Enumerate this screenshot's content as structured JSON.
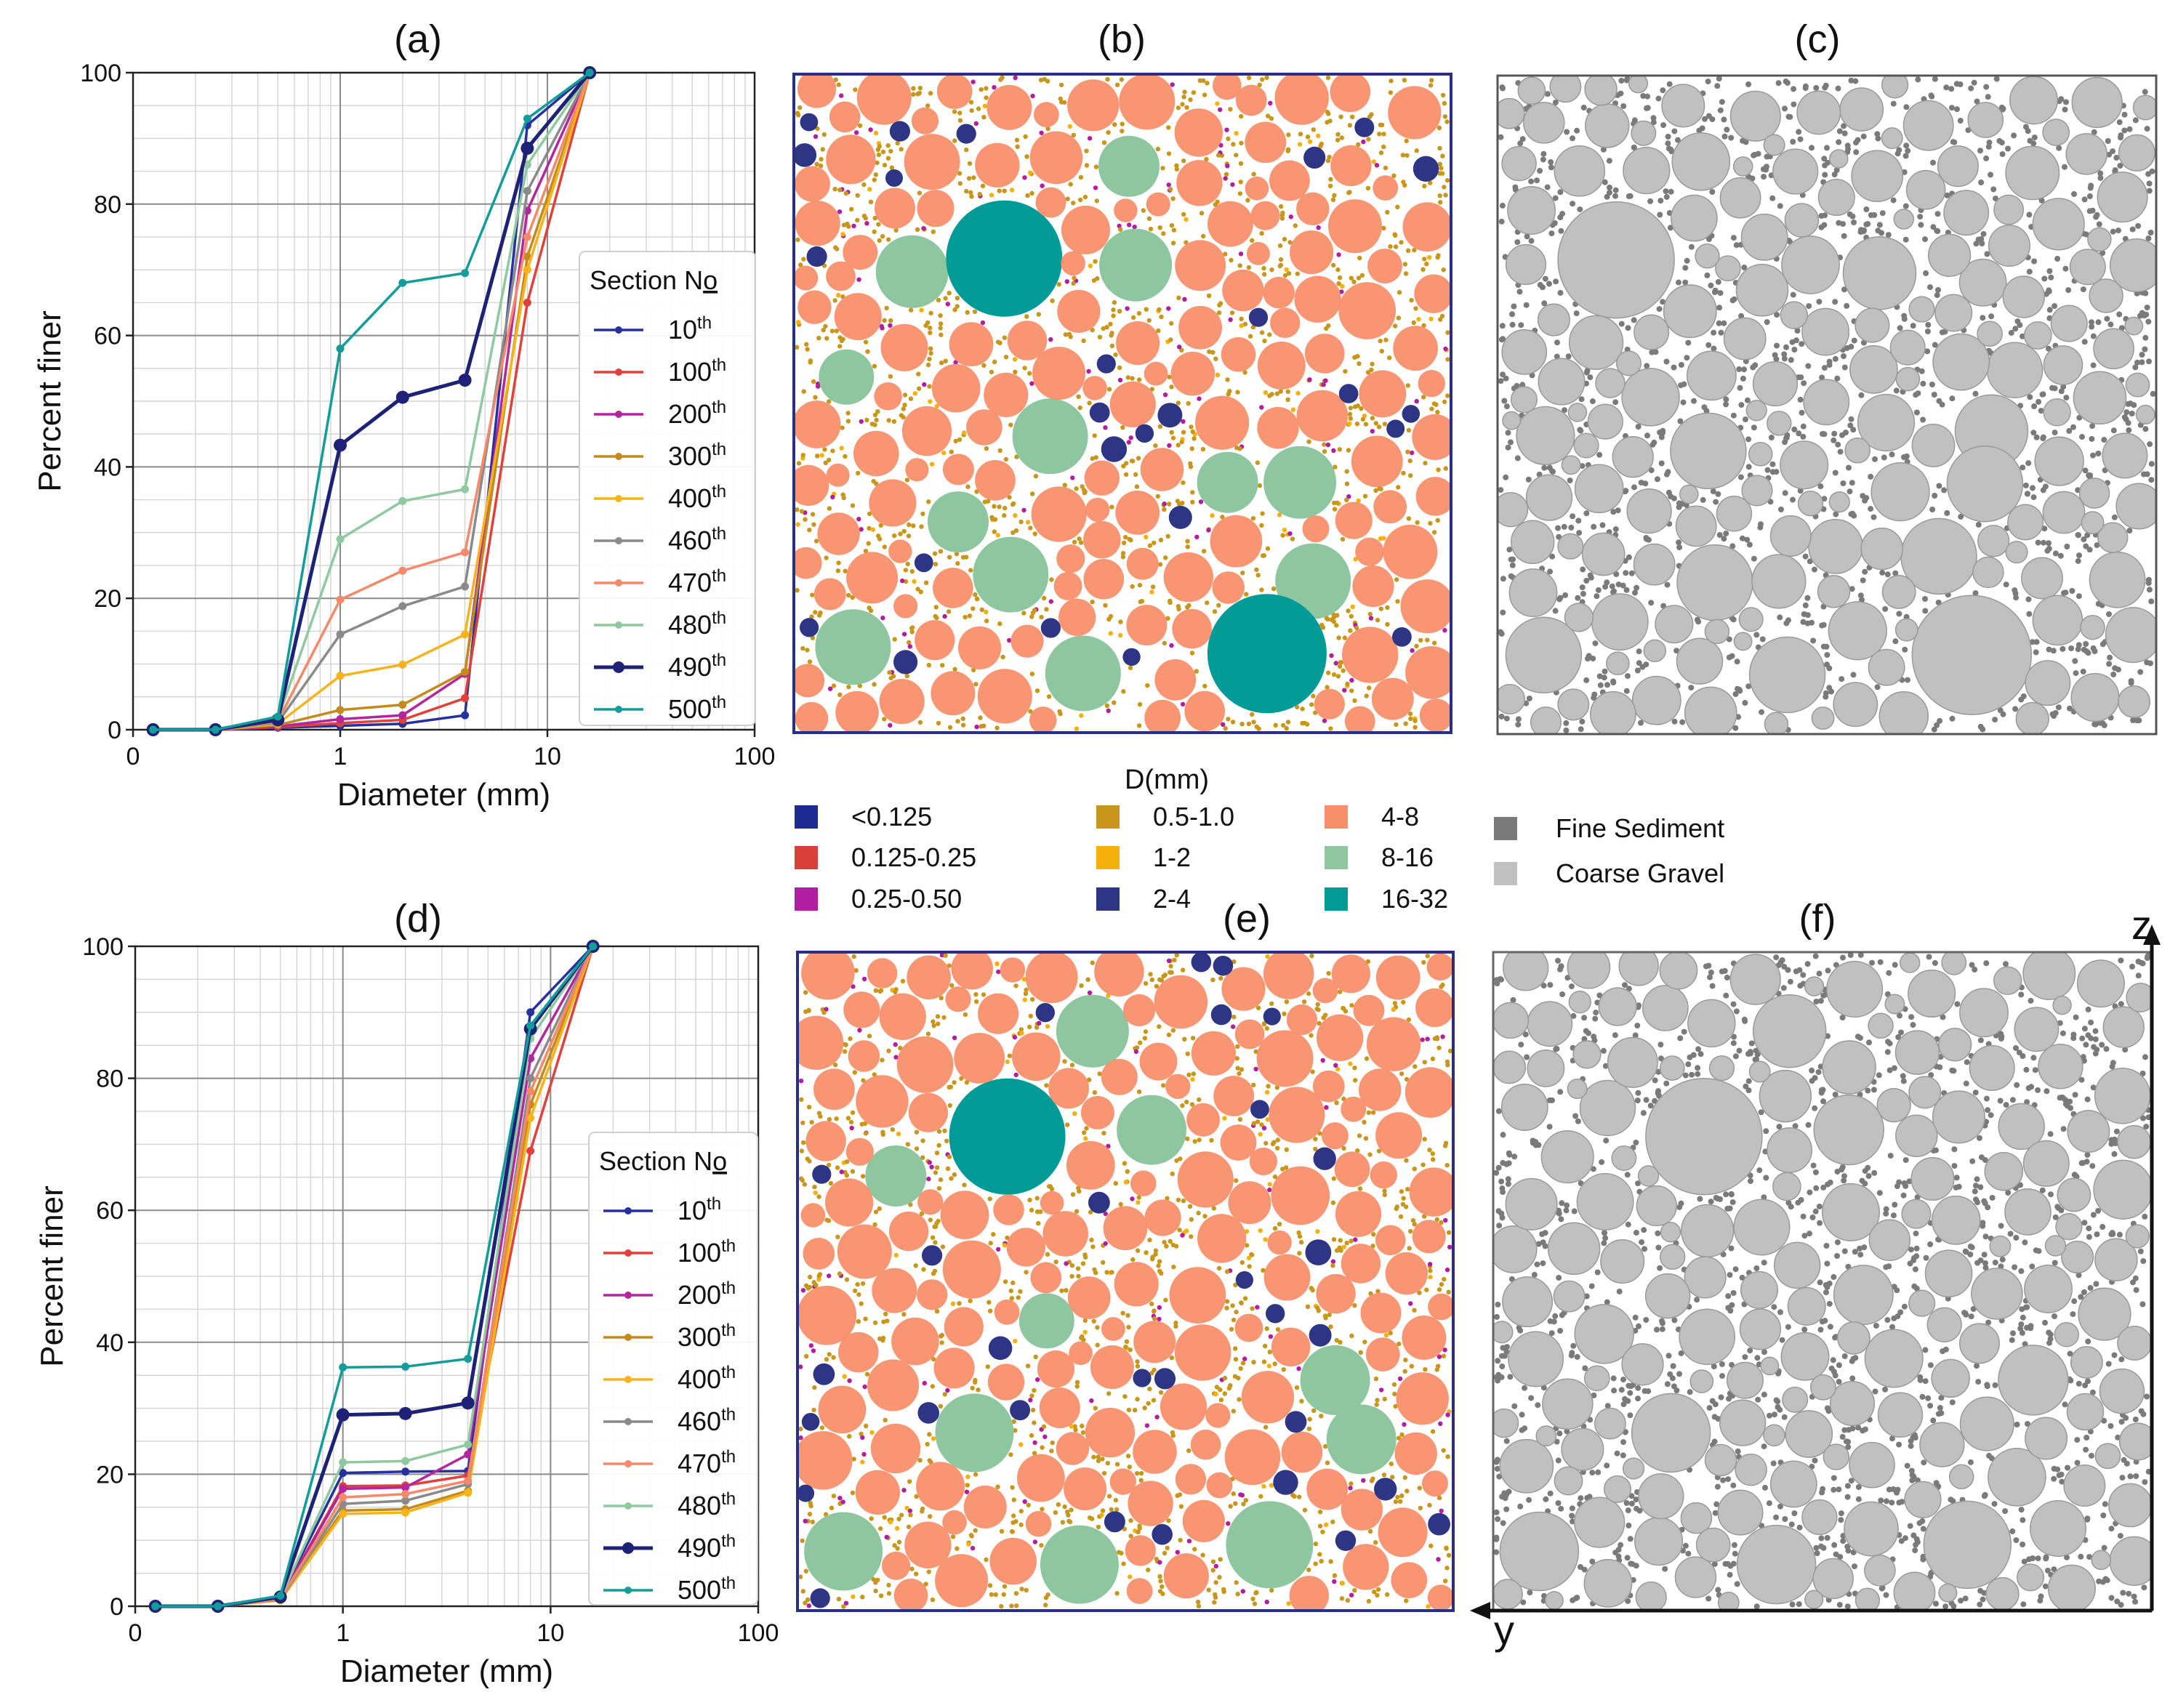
{
  "figure": {
    "panel_labels": [
      "(a)",
      "(b)",
      "(c)",
      "(d)",
      "(e)",
      "(f)"
    ],
    "size_legend": {
      "title": "D(mm)",
      "items": [
        {
          "label": "<0.125",
          "color": "#1f2a8f"
        },
        {
          "label": "0.125-0.25",
          "color": "#d9403a"
        },
        {
          "label": "0.25-0.50",
          "color": "#b31ea0"
        },
        {
          "label": "0.5-1.0",
          "color": "#c8961a"
        },
        {
          "label": "1-2",
          "color": "#f5b00c"
        },
        {
          "label": "2-4",
          "color": "#2e3584"
        },
        {
          "label": "4-8",
          "color": "#f88f6a"
        },
        {
          "label": "8-16",
          "color": "#8ec6a0"
        },
        {
          "label": "16-32",
          "color": "#009b96"
        }
      ]
    },
    "type_legend": {
      "items": [
        {
          "label": "Fine Sediment",
          "color": "#7a7a7a"
        },
        {
          "label": "Coarse Gravel",
          "color": "#c0c0c0"
        }
      ]
    },
    "axis_arrows": {
      "z": "z",
      "y": "y"
    }
  },
  "chart_data": [
    {
      "panel": "(a)",
      "type": "line",
      "xlabel": "Diameter (mm)",
      "ylabel": "Percent finer",
      "xscale": "log",
      "xlim": [
        0.1,
        100
      ],
      "ylim": [
        0,
        100
      ],
      "xticks": [
        "0",
        "1",
        "10",
        "100"
      ],
      "yticks": [
        "0",
        "20",
        "40",
        "60",
        "80",
        "100"
      ],
      "grid": true,
      "legend_title": "Section No",
      "legend_position": "center-right",
      "x": [
        0.125,
        0.25,
        0.5,
        1,
        2,
        4,
        8,
        16
      ],
      "series": [
        {
          "name": "10th",
          "color": "#2630a0",
          "values": [
            0,
            0,
            0.3,
            0.6,
            0.9,
            2.2,
            92,
            100
          ]
        },
        {
          "name": "100th",
          "color": "#e0413a",
          "values": [
            0,
            0,
            0.4,
            1.0,
            1.5,
            4.8,
            65,
            100
          ]
        },
        {
          "name": "200th",
          "color": "#b4259e",
          "values": [
            0,
            0,
            0.5,
            1.6,
            2.2,
            8.5,
            79,
            100
          ]
        },
        {
          "name": "300th",
          "color": "#c58a1c",
          "values": [
            0,
            0,
            0.7,
            3.0,
            3.8,
            8.8,
            72,
            100
          ]
        },
        {
          "name": "400th",
          "color": "#f7b31b",
          "values": [
            0,
            0,
            0.9,
            8.2,
            9.9,
            14.5,
            70,
            100
          ]
        },
        {
          "name": "460th",
          "color": "#8a8a8a",
          "values": [
            0,
            0,
            1.1,
            14.5,
            18.8,
            21.8,
            82,
            100
          ]
        },
        {
          "name": "470th",
          "color": "#f7886a",
          "values": [
            0,
            0,
            1.3,
            19.8,
            24.2,
            27.0,
            75,
            100
          ]
        },
        {
          "name": "480th",
          "color": "#8ec9a0",
          "values": [
            0,
            0,
            1.6,
            29.0,
            34.8,
            36.6,
            86,
            100
          ]
        },
        {
          "name": "490th",
          "color": "#1e2277",
          "values": [
            0,
            0,
            1.5,
            43.3,
            50.6,
            53.2,
            88.5,
            100
          ]
        },
        {
          "name": "500th",
          "color": "#139d9a",
          "values": [
            0,
            0,
            2.0,
            58.0,
            68.0,
            69.5,
            93,
            100
          ]
        }
      ]
    },
    {
      "panel": "(d)",
      "type": "line",
      "xlabel": "Diameter (mm)",
      "ylabel": "Percent finer",
      "xscale": "log",
      "xlim": [
        0.1,
        100
      ],
      "ylim": [
        0,
        100
      ],
      "xticks": [
        "0",
        "1",
        "10",
        "100"
      ],
      "yticks": [
        "0",
        "20",
        "40",
        "60",
        "80",
        "100"
      ],
      "grid": true,
      "legend_title": "Section No",
      "legend_position": "center-right",
      "x": [
        0.125,
        0.25,
        0.5,
        1,
        2,
        4,
        8,
        16
      ],
      "series": [
        {
          "name": "10th",
          "color": "#2630a0",
          "values": [
            0,
            0,
            1.3,
            20.2,
            20.4,
            20.5,
            90,
            100
          ]
        },
        {
          "name": "100th",
          "color": "#e0413a",
          "values": [
            0,
            0,
            1.1,
            18.2,
            18.3,
            19.8,
            69,
            100
          ]
        },
        {
          "name": "200th",
          "color": "#b4259e",
          "values": [
            0,
            0,
            1.2,
            17.8,
            18.0,
            23.0,
            83,
            100
          ]
        },
        {
          "name": "300th",
          "color": "#c58a1c",
          "values": [
            0,
            0,
            1.0,
            14.5,
            14.7,
            17.5,
            76,
            100
          ]
        },
        {
          "name": "400th",
          "color": "#f7b31b",
          "values": [
            0,
            0,
            0.9,
            14.0,
            14.2,
            17.2,
            74,
            100
          ]
        },
        {
          "name": "460th",
          "color": "#8a8a8a",
          "values": [
            0,
            0,
            1.0,
            15.5,
            16.0,
            18.5,
            80,
            100
          ]
        },
        {
          "name": "470th",
          "color": "#f7886a",
          "values": [
            0,
            0,
            1.1,
            16.5,
            17.0,
            19.0,
            78,
            100
          ]
        },
        {
          "name": "480th",
          "color": "#8ec9a0",
          "values": [
            0,
            0,
            1.3,
            21.8,
            22.0,
            24.5,
            86,
            100
          ]
        },
        {
          "name": "490th",
          "color": "#1e2277",
          "values": [
            0,
            0,
            1.4,
            29.0,
            29.2,
            30.8,
            87.5,
            100
          ]
        },
        {
          "name": "500th",
          "color": "#139d9a",
          "values": [
            0,
            0,
            1.6,
            36.2,
            36.3,
            37.5,
            88,
            100
          ]
        }
      ]
    }
  ]
}
